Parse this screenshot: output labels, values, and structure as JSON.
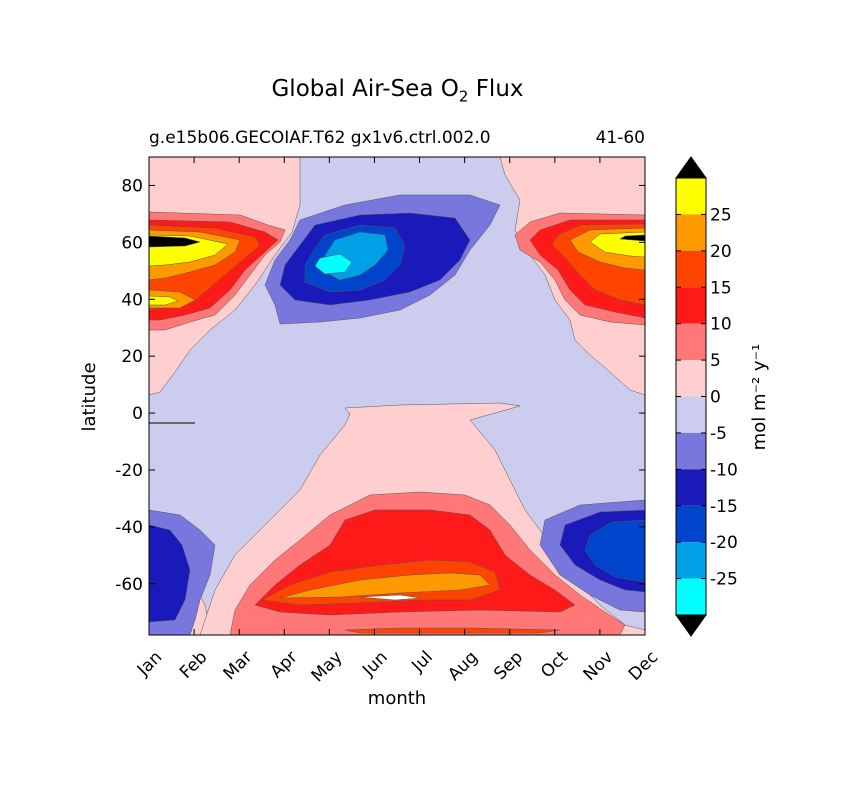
{
  "chart_data": {
    "type": "heatmap",
    "title_text": "Global Air-Sea O",
    "title_sub": "2",
    "title_tail": " Flux",
    "subtitle_left": "g.e15b06.GECOIAF.T62 gx1v6.ctrl.002.0",
    "subtitle_right": "41-60",
    "xlabel": "month",
    "ylabel": "latitude",
    "x_categories": [
      "Jan",
      "Feb",
      "Mar",
      "Apr",
      "May",
      "Jun",
      "Jul",
      "Aug",
      "Sep",
      "Oct",
      "Nov",
      "Dec"
    ],
    "yticks": [
      "80",
      "60",
      "40",
      "20",
      "0",
      "-20",
      "-40",
      "-60"
    ],
    "ylim": [
      -78,
      90
    ],
    "colorbar": {
      "label": "mol m⁻² y⁻¹",
      "ticks": [
        "25",
        "20",
        "15",
        "10",
        "5",
        "0",
        "-5",
        "-10",
        "-15",
        "-20",
        "-25"
      ],
      "levels_high_to_low": [
        {
          "range": "25 – 30",
          "color": "#ffff00"
        },
        {
          "range": "20 – 25",
          "color": "#ff9900"
        },
        {
          "range": "15 – 20",
          "color": "#ff4400"
        },
        {
          "range": "10 – 15",
          "color": "#ff1a1a"
        },
        {
          "range": "5 – 10",
          "color": "#ff7777"
        },
        {
          "range": "0 – 5",
          "color": "#ffcfcf"
        },
        {
          "range": "-5 – 0",
          "color": "#ccccee"
        },
        {
          "range": "-10 – -5",
          "color": "#7777dd"
        },
        {
          "range": "-15 – -10",
          "color": "#1a1abb"
        },
        {
          "range": "-20 – -15",
          "color": "#0044cc"
        },
        {
          "range": "-25 – -20",
          "color": "#00a0e6"
        },
        {
          "range": "-30 – -25",
          "color": "#00ffff"
        }
      ],
      "extend_colors": {
        "max": "#000000",
        "min": "#000000"
      }
    }
  }
}
